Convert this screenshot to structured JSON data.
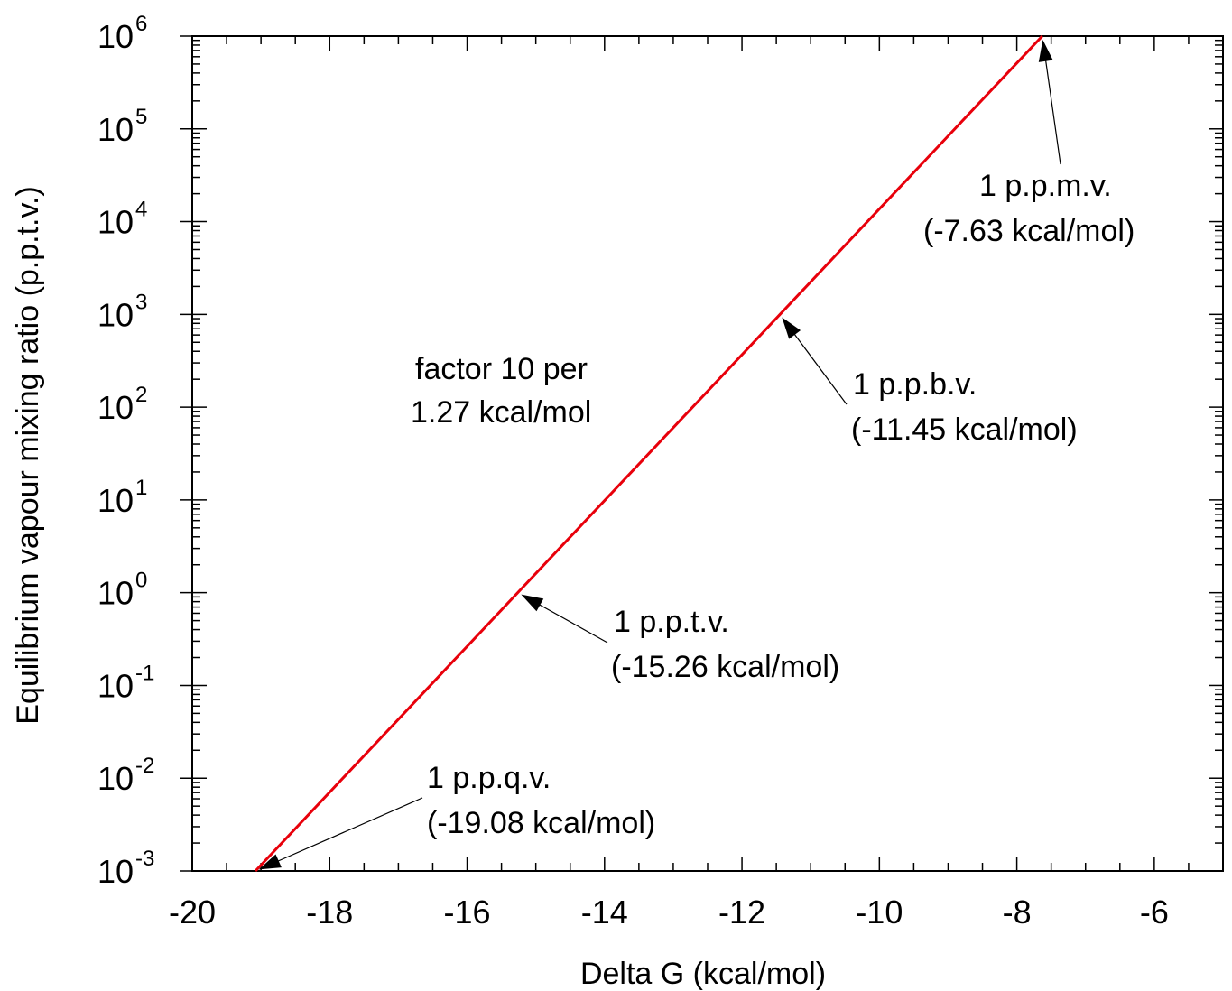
{
  "chart_data": {
    "type": "line",
    "xlabel": "Delta G (kcal/mol)",
    "ylabel": "Equilibrium vapour mixing ratio (p.p.t.v.)",
    "xlim": [
      -20,
      -5
    ],
    "ylim": [
      0.001,
      1000000
    ],
    "yscale": "log",
    "grid": false,
    "x_ticks": [
      "-20",
      "-18",
      "-16",
      "-14",
      "-12",
      "-10",
      "-8",
      "-6"
    ],
    "y_ticks": [
      {
        "base": "10",
        "exp": "-3"
      },
      {
        "base": "10",
        "exp": "-2"
      },
      {
        "base": "10",
        "exp": "-1"
      },
      {
        "base": "10",
        "exp": "0"
      },
      {
        "base": "10",
        "exp": "1"
      },
      {
        "base": "10",
        "exp": "2"
      },
      {
        "base": "10",
        "exp": "3"
      },
      {
        "base": "10",
        "exp": "4"
      },
      {
        "base": "10",
        "exp": "5"
      },
      {
        "base": "10",
        "exp": "6"
      }
    ],
    "series": [
      {
        "color": "#e8000b",
        "x": [
          -19.08,
          -7.63
        ],
        "y": [
          0.001,
          1000000
        ]
      }
    ],
    "annotations": [
      {
        "line1": "1 p.p.q.v.",
        "line2": "(-19.08 kcal/mol)",
        "point": [
          -19.08,
          0.001
        ]
      },
      {
        "line1": "1 p.p.t.v.",
        "line2": "(-15.26 kcal/mol)",
        "point": [
          -15.26,
          1
        ]
      },
      {
        "line1": "1 p.p.b.v.",
        "line2": "(-11.45 kcal/mol)",
        "point": [
          -11.45,
          1000
        ]
      },
      {
        "line1": "1 p.p.m.v.",
        "line2": "(-7.63 kcal/mol)",
        "point": [
          -7.63,
          1000000
        ]
      }
    ],
    "note": {
      "line1": "factor 10 per",
      "line2": "1.27 kcal/mol"
    }
  }
}
